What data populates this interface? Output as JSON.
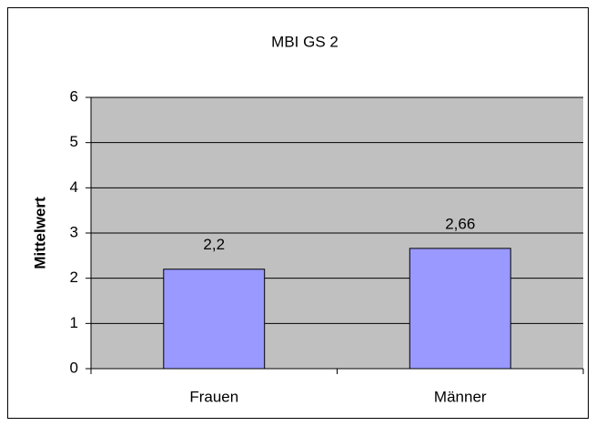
{
  "chart_data": {
    "type": "bar",
    "title": "MBI GS 2",
    "y_label": "Mittelwert",
    "categories": [
      "Frauen",
      "Männer"
    ],
    "values": [
      2.2,
      2.66
    ],
    "value_labels": [
      "2,2",
      "2,66"
    ],
    "color": "#9999ff",
    "ylim": [
      0,
      6
    ],
    "yticks": [
      0,
      1,
      2,
      3,
      4,
      5,
      6
    ],
    "grid": true
  }
}
